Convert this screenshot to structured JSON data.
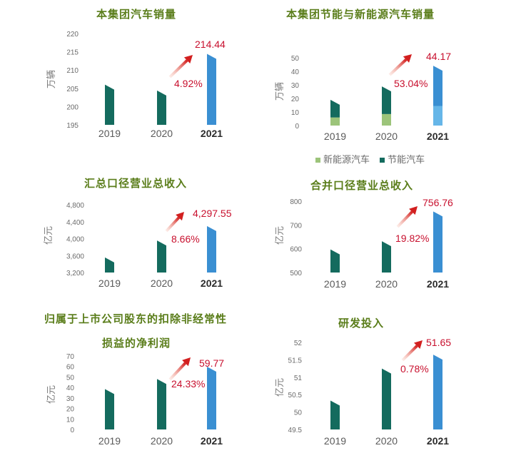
{
  "colors": {
    "title": "#5a7d1a",
    "bar_prior": "#146b5e",
    "bar_current": "#3a8fd2",
    "bar_current_light": "#66b6e8",
    "bar_nev": "#9cc47a",
    "growth": "#c8102e"
  },
  "chart_data": [
    {
      "id": "group-vehicle-sales",
      "type": "bar",
      "title": "本集团汽车销量",
      "ylabel": "万辆",
      "categories": [
        "2019",
        "2020",
        "2021"
      ],
      "values": [
        206.0,
        204.4,
        214.44
      ],
      "yticks": [
        "220",
        "215",
        "210",
        "205",
        "200",
        "195"
      ],
      "ylim": [
        195,
        220
      ],
      "value_label": "214.44",
      "growth_label": "4.92%",
      "grid": false
    },
    {
      "id": "energy-saving-and-nev-sales",
      "type": "bar",
      "stacked": true,
      "title": "本集团节能与新能源汽车销量",
      "ylabel": "万辆",
      "categories": [
        "2019",
        "2020",
        "2021"
      ],
      "series": [
        {
          "name": "新能源汽车",
          "values": [
            6.0,
            8.5,
            14.5
          ]
        },
        {
          "name": "节能汽车",
          "values": [
            13.0,
            20.4,
            29.67
          ]
        }
      ],
      "totals": [
        19.0,
        28.9,
        44.17
      ],
      "yticks": [
        "50",
        "40",
        "30",
        "20",
        "10",
        "0"
      ],
      "ylim": [
        0,
        50
      ],
      "value_label": "44.17",
      "growth_label": "53.04%",
      "legend": [
        "新能源汽车",
        "节能汽车"
      ],
      "legend_position": "bottom",
      "grid": false
    },
    {
      "id": "aggregate-total-revenue",
      "type": "bar",
      "title": "汇总口径营业总收入",
      "ylabel": "亿元",
      "categories": [
        "2019",
        "2020",
        "2021"
      ],
      "values": [
        3555,
        3955,
        4297.55
      ],
      "yticks": [
        "4,800",
        "4,400",
        "4,000",
        "3,600",
        "3,200"
      ],
      "ylim": [
        3200,
        4800
      ],
      "value_label": "4,297.55",
      "growth_label": "8.66%",
      "grid": false
    },
    {
      "id": "consolidated-total-revenue",
      "type": "bar",
      "title": "合并口径营业总收入",
      "ylabel": "亿元",
      "categories": [
        "2019",
        "2020",
        "2021"
      ],
      "values": [
        597,
        631.6,
        756.76
      ],
      "yticks": [
        "800",
        "700",
        "600",
        "500"
      ],
      "ylim": [
        500,
        800
      ],
      "value_label": "756.76",
      "growth_label": "19.82%",
      "grid": false
    },
    {
      "id": "net-profit-attributable",
      "type": "bar",
      "title_lines": [
        "归属于上市公司股东的扣除非经常性",
        "损益的净利润"
      ],
      "title": "归属于上市公司股东的扣除非经常性损益的净利润",
      "ylabel": "亿元",
      "categories": [
        "2019",
        "2020",
        "2021"
      ],
      "values": [
        38.5,
        48.07,
        59.77
      ],
      "yticks": [
        "70",
        "60",
        "50",
        "40",
        "30",
        "20",
        "10",
        "0"
      ],
      "ylim": [
        0,
        70
      ],
      "value_label": "59.77",
      "growth_label": "24.33%",
      "grid": false
    },
    {
      "id": "rd-investment",
      "type": "bar",
      "title": "研发投入",
      "ylabel": "亿元",
      "categories": [
        "2019",
        "2020",
        "2021"
      ],
      "values": [
        50.33,
        51.25,
        51.65
      ],
      "yticks": [
        "52",
        "51.5",
        "51",
        "50.5",
        "50",
        "49.5"
      ],
      "ylim": [
        49.5,
        52
      ],
      "value_label": "51.65",
      "growth_label": "0.78%",
      "grid": false
    }
  ]
}
